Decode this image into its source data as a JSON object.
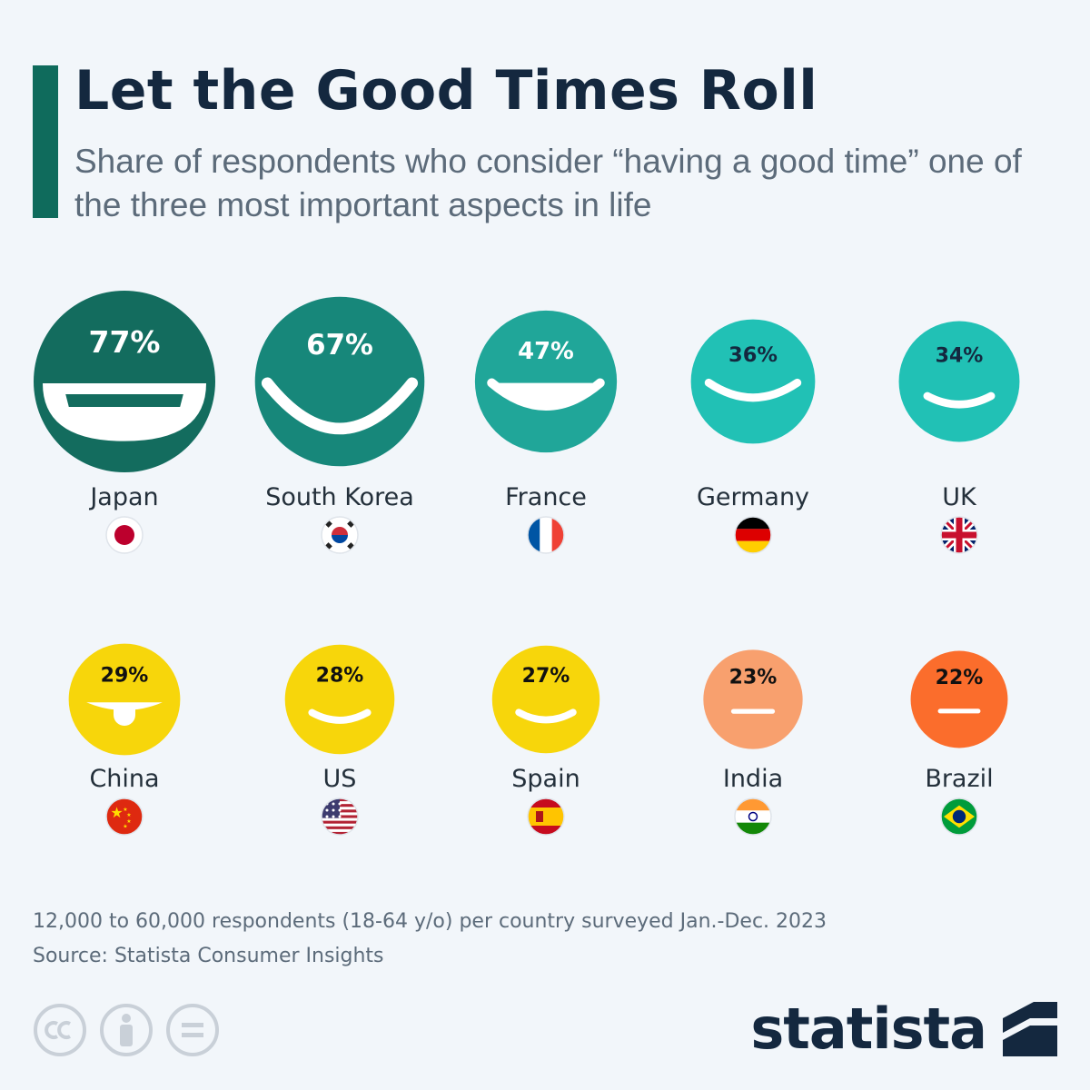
{
  "header": {
    "title": "Let the Good Times Roll",
    "subtitle": "Share of respondents who consider “having a good time” one of the three most important aspects in life"
  },
  "chart_data": {
    "type": "proportional-bubble",
    "title": "Let the Good Times Roll",
    "unit": "%",
    "categories": [
      "Japan",
      "South Korea",
      "France",
      "Germany",
      "UK",
      "China",
      "US",
      "Spain",
      "India",
      "Brazil"
    ],
    "values": [
      77,
      67,
      47,
      36,
      34,
      29,
      28,
      27,
      23,
      22
    ],
    "labels": [
      "77%",
      "67%",
      "47%",
      "36%",
      "34%",
      "29%",
      "28%",
      "27%",
      "23%",
      "22%"
    ],
    "flags": [
      "japan-flag",
      "south-korea-flag",
      "france-flag",
      "germany-flag",
      "uk-flag",
      "china-flag",
      "us-flag",
      "spain-flag",
      "india-flag",
      "brazil-flag"
    ],
    "colors": [
      "#136c5e",
      "#17877a",
      "#20a699",
      "#21c1b5",
      "#21c1b5",
      "#f7d60b",
      "#f7d60b",
      "#f7d60b",
      "#f8a06e",
      "#fb6d2c"
    ],
    "text_colors": [
      "#ffffff",
      "#ffffff",
      "#ffffff",
      "#14283f",
      "#14283f",
      "#111111",
      "#111111",
      "#111111",
      "#111111",
      "#111111"
    ]
  },
  "footer": {
    "note": "12,000 to 60,000 respondents (18-64 y/o) per country surveyed Jan.-Dec. 2023",
    "source": "Source: Statista Consumer Insights",
    "brand": "statista"
  }
}
